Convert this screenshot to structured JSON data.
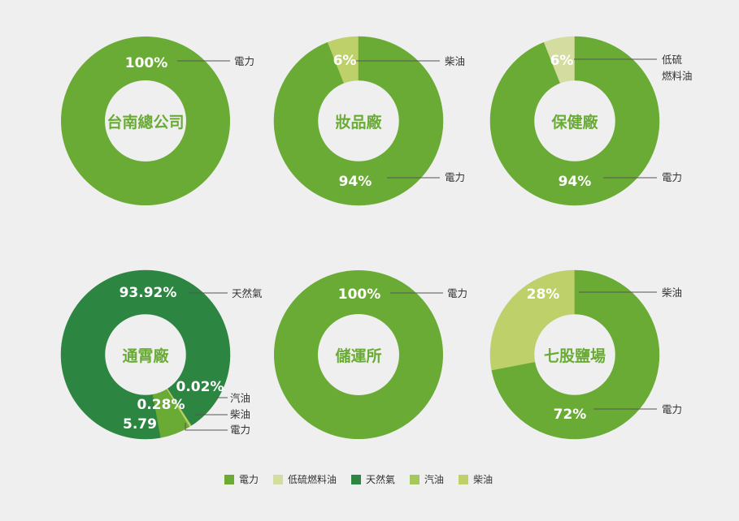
{
  "colors": {
    "power": "#6aab35",
    "lowsulfur": "#d4dd9f",
    "naturalgas": "#2c8540",
    "gasoline": "#a6c85a",
    "diesel": "#bdd06a",
    "label_text": "#ffffff",
    "callout_text": "#333333",
    "line": "#555555",
    "center_text": "#6aab35"
  },
  "legend": [
    {
      "label": "電力",
      "color": "#6aab35"
    },
    {
      "label": "低硫燃料油",
      "color": "#d4dd9f"
    },
    {
      "label": "天然氣",
      "color": "#2c8540"
    },
    {
      "label": "汽油",
      "color": "#a6c85a"
    },
    {
      "label": "柴油",
      "color": "#bdd06a"
    }
  ],
  "chart_data": [
    {
      "type": "pie",
      "title": "台南總公司",
      "slices": [
        {
          "name": "電力",
          "value": 100,
          "label": "100%"
        }
      ]
    },
    {
      "type": "pie",
      "title": "妝品廠",
      "slices": [
        {
          "name": "柴油",
          "value": 6,
          "label": "6%"
        },
        {
          "name": "電力",
          "value": 94,
          "label": "94%"
        }
      ]
    },
    {
      "type": "pie",
      "title": "保健廠",
      "slices": [
        {
          "name": "低硫燃料油",
          "value": 6,
          "label": "6%"
        },
        {
          "name": "電力",
          "value": 94,
          "label": "94%"
        }
      ]
    },
    {
      "type": "pie",
      "title": "通霄廠",
      "slices": [
        {
          "name": "天然氣",
          "value": 93.92,
          "label": "93.92%"
        },
        {
          "name": "汽油",
          "value": 0.02,
          "label": "0.02%"
        },
        {
          "name": "柴油",
          "value": 0.28,
          "label": "0.28%"
        },
        {
          "name": "電力",
          "value": 5.79,
          "label": "5.79"
        }
      ]
    },
    {
      "type": "pie",
      "title": "儲運所",
      "slices": [
        {
          "name": "電力",
          "value": 100,
          "label": "100%"
        }
      ]
    },
    {
      "type": "pie",
      "title": "七股鹽場",
      "slices": [
        {
          "name": "柴油",
          "value": 28,
          "label": "28%"
        },
        {
          "name": "電力",
          "value": 72,
          "label": "72%"
        }
      ]
    }
  ],
  "callouts": [
    [
      "電力"
    ],
    [
      "柴油",
      "電力"
    ],
    [
      "低硫\n燃料油",
      "電力"
    ],
    [
      "天然氣",
      "汽油",
      "柴油",
      "電力"
    ],
    [
      "電力"
    ],
    [
      "柴油",
      "電力"
    ]
  ]
}
